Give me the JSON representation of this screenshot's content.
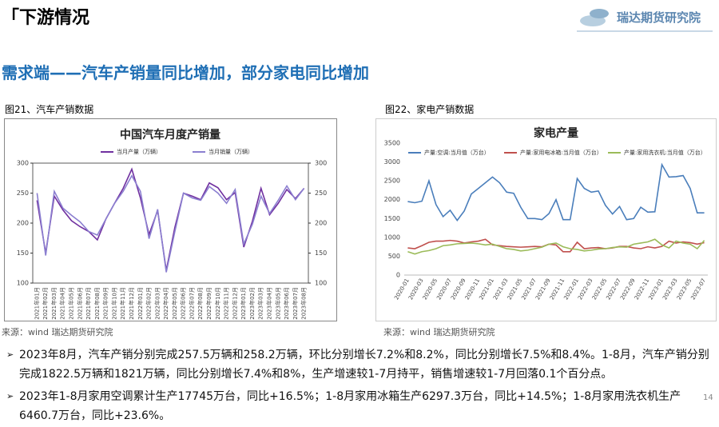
{
  "header": {
    "bracket": "「",
    "title": "下游情况",
    "logo": "瑞达期货研究院"
  },
  "heading": "需求端——汽车产销量同比增加，部分家电同比增加",
  "figures": [
    {
      "label": "图21、汽车产销数据",
      "source": "来源：wind   瑞达期货研究院"
    },
    {
      "label": "图22、家电产销数据",
      "source": "来源：wind   瑞达期货研究院"
    }
  ],
  "chart_data": [
    {
      "type": "line",
      "title": "中国汽车月度产销量",
      "categories": [
        "2021年01月",
        "2021年02月",
        "2021年03月",
        "2021年04月",
        "2021年05月",
        "2021年06月",
        "2021年07月",
        "2021年08月",
        "2021年09月",
        "2021年10月",
        "2021年11月",
        "2021年12月",
        "2022年01月",
        "2022年02月",
        "2022年03月",
        "2022年04月",
        "2022年05月",
        "2022年06月",
        "2022年07月",
        "2022年08月",
        "2022年09月",
        "2022年10月",
        "2022年11月",
        "2022年12月",
        "2023年01月",
        "2023年02月",
        "2023年03月",
        "2023年04月",
        "2023年05月",
        "2023年06月",
        "2023年07月",
        "2023年08月"
      ],
      "series": [
        {
          "name": "当月产量（万辆）",
          "color": "#7030a0",
          "values": [
            238,
            150,
            245,
            222,
            204,
            194,
            186,
            172,
            207,
            233,
            258,
            290,
            242,
            181,
            221,
            121,
            193,
            250,
            245,
            239,
            267,
            259,
            239,
            251,
            160,
            203,
            258,
            214,
            233,
            256,
            241,
            258
          ]
        },
        {
          "name": "当月销量（万辆）",
          "color": "#8b7fd0",
          "axis": "y2",
          "values": [
            250,
            146,
            253,
            225,
            213,
            202,
            186,
            180,
            207,
            233,
            253,
            279,
            253,
            174,
            223,
            118,
            186,
            250,
            242,
            238,
            261,
            250,
            233,
            256,
            165,
            198,
            245,
            216,
            238,
            262,
            239,
            258
          ]
        }
      ],
      "ylim": [
        100,
        300
      ],
      "yticks": [
        100,
        150,
        200,
        250,
        300
      ],
      "y2lim": [
        100,
        300
      ],
      "y2ticks": [
        100,
        150,
        200,
        250,
        300
      ],
      "grid": false,
      "legend": "top"
    },
    {
      "type": "line",
      "title": "家电产量",
      "categories": [
        "2020-01",
        null,
        "2020-03",
        null,
        "2020-05",
        null,
        "2020-07",
        null,
        "2020-09",
        null,
        "2020-11",
        null,
        "2021-01",
        null,
        "2021-03",
        null,
        "2021-05",
        null,
        "2021-07",
        null,
        "2021-09",
        null,
        "2021-11",
        null,
        "2022-01",
        null,
        "2022-03",
        null,
        "2022-05",
        null,
        "2022-07",
        null,
        "2022-09",
        null,
        "2022-11",
        null,
        "2023-01",
        null,
        "2023-03",
        null,
        "2023-05",
        null,
        "2023-07"
      ],
      "series": [
        {
          "name": "产量:空调:当月值（万台）",
          "color": "#4a7ebb",
          "values": [
            1950,
            1920,
            1960,
            2500,
            1870,
            1550,
            1720,
            1450,
            1700,
            2150,
            2300,
            2450,
            2600,
            2450,
            2200,
            2170,
            1800,
            1500,
            1500,
            1470,
            1630,
            2000,
            1470,
            1470,
            2560,
            2300,
            2200,
            2230,
            1850,
            1620,
            1820,
            1470,
            1500,
            1800,
            1670,
            1680,
            2930,
            2600,
            2610,
            2640,
            2300,
            1650,
            1650
          ]
        },
        {
          "name": "产量:家用电冰箱:当月值（万台）",
          "color": "#c0504d",
          "values": [
            720,
            700,
            780,
            870,
            900,
            900,
            920,
            900,
            850,
            880,
            900,
            950,
            800,
            780,
            760,
            750,
            740,
            750,
            760,
            750,
            820,
            800,
            620,
            620,
            870,
            700,
            720,
            730,
            700,
            720,
            760,
            760,
            720,
            700,
            750,
            720,
            760,
            900,
            850,
            880,
            860,
            820,
            860
          ]
        },
        {
          "name": "产量:家用洗衣机:当月值（万台）",
          "color": "#9bbb59",
          "values": [
            620,
            560,
            620,
            650,
            700,
            780,
            800,
            830,
            840,
            850,
            830,
            800,
            820,
            760,
            700,
            680,
            640,
            660,
            700,
            740,
            820,
            850,
            750,
            700,
            680,
            640,
            660,
            690,
            700,
            730,
            750,
            740,
            820,
            850,
            880,
            950,
            800,
            720,
            900,
            850,
            820,
            700,
            920
          ]
        }
      ],
      "ylim": [
        0,
        3500
      ],
      "yticks": [
        0,
        500,
        1000,
        1500,
        2000,
        2500,
        3000,
        3500
      ],
      "grid": false,
      "legend": "top"
    }
  ],
  "bullets": [
    "2023年8月，汽车产销分别完成257.5万辆和258.2万辆，环比分别增长7.2%和8.2%，同比分别增长7.5%和8.4%。1-8月，汽车产销分别完成1822.5万辆和1821万辆，同比分别增长7.4%和8%，生产增速较1-7月持平，销售增速较1-7月回落0.1个百分点。",
    "2023年1-8月家用空调累计生产17745万台，同比+16.5%；1-8月家用冰箱生产6297.3万台，同比+14.5%；1-8月家用洗衣机生产6460.7万台，同比+23.6%。"
  ],
  "page_number": "14"
}
